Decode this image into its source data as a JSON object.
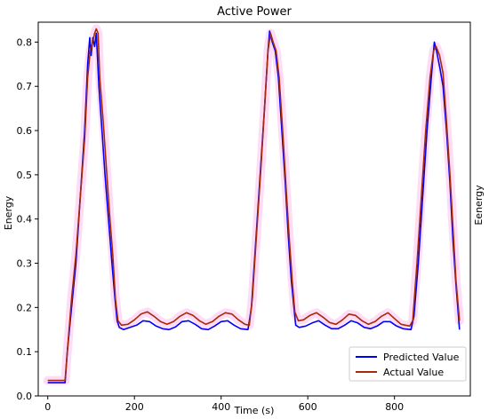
{
  "chart_data": {
    "type": "line",
    "title": "Active Power",
    "xlabel": "Time (s)",
    "ylabel": "Energy",
    "ylabel_right": "Eenergy",
    "xlim": [
      -22,
      975
    ],
    "ylim": [
      0.0,
      0.845
    ],
    "xticks": [
      0,
      200,
      400,
      600,
      800
    ],
    "yticks": [
      0.0,
      0.1,
      0.2,
      0.3,
      0.4,
      0.5,
      0.6,
      0.7,
      0.8
    ],
    "grid": false,
    "legend_position": "lower-right",
    "series": [
      {
        "name": "Predicted Value",
        "color": "#0000ff",
        "points": [
          [
            0,
            0.03
          ],
          [
            40,
            0.03
          ],
          [
            45,
            0.1
          ],
          [
            55,
            0.2
          ],
          [
            65,
            0.3
          ],
          [
            75,
            0.45
          ],
          [
            85,
            0.6
          ],
          [
            92,
            0.75
          ],
          [
            97,
            0.81
          ],
          [
            100,
            0.77
          ],
          [
            104,
            0.81
          ],
          [
            108,
            0.79
          ],
          [
            112,
            0.82
          ],
          [
            118,
            0.7
          ],
          [
            125,
            0.6
          ],
          [
            132,
            0.5
          ],
          [
            140,
            0.4
          ],
          [
            148,
            0.3
          ],
          [
            155,
            0.22
          ],
          [
            160,
            0.17
          ],
          [
            165,
            0.155
          ],
          [
            175,
            0.15
          ],
          [
            190,
            0.155
          ],
          [
            205,
            0.16
          ],
          [
            220,
            0.17
          ],
          [
            235,
            0.168
          ],
          [
            250,
            0.158
          ],
          [
            265,
            0.152
          ],
          [
            280,
            0.15
          ],
          [
            295,
            0.156
          ],
          [
            310,
            0.168
          ],
          [
            325,
            0.17
          ],
          [
            340,
            0.162
          ],
          [
            355,
            0.152
          ],
          [
            370,
            0.15
          ],
          [
            385,
            0.158
          ],
          [
            400,
            0.168
          ],
          [
            415,
            0.17
          ],
          [
            430,
            0.16
          ],
          [
            445,
            0.152
          ],
          [
            462,
            0.15
          ],
          [
            470,
            0.2
          ],
          [
            480,
            0.35
          ],
          [
            490,
            0.5
          ],
          [
            500,
            0.65
          ],
          [
            508,
            0.78
          ],
          [
            512,
            0.825
          ],
          [
            518,
            0.8
          ],
          [
            525,
            0.78
          ],
          [
            532,
            0.72
          ],
          [
            540,
            0.6
          ],
          [
            548,
            0.48
          ],
          [
            555,
            0.36
          ],
          [
            562,
            0.26
          ],
          [
            568,
            0.2
          ],
          [
            572,
            0.16
          ],
          [
            580,
            0.155
          ],
          [
            595,
            0.158
          ],
          [
            610,
            0.165
          ],
          [
            625,
            0.17
          ],
          [
            640,
            0.16
          ],
          [
            655,
            0.152
          ],
          [
            670,
            0.152
          ],
          [
            685,
            0.16
          ],
          [
            700,
            0.17
          ],
          [
            715,
            0.165
          ],
          [
            730,
            0.155
          ],
          [
            745,
            0.152
          ],
          [
            760,
            0.158
          ],
          [
            775,
            0.168
          ],
          [
            790,
            0.168
          ],
          [
            805,
            0.158
          ],
          [
            820,
            0.152
          ],
          [
            838,
            0.15
          ],
          [
            845,
            0.18
          ],
          [
            855,
            0.3
          ],
          [
            865,
            0.45
          ],
          [
            875,
            0.6
          ],
          [
            885,
            0.72
          ],
          [
            892,
            0.8
          ],
          [
            897,
            0.78
          ],
          [
            905,
            0.74
          ],
          [
            912,
            0.7
          ],
          [
            920,
            0.6
          ],
          [
            928,
            0.48
          ],
          [
            935,
            0.35
          ],
          [
            942,
            0.25
          ],
          [
            950,
            0.15
          ]
        ]
      },
      {
        "name": "Actual Value",
        "color": "#a52a0a",
        "points": [
          [
            0,
            0.035
          ],
          [
            40,
            0.035
          ],
          [
            45,
            0.1
          ],
          [
            55,
            0.22
          ],
          [
            65,
            0.32
          ],
          [
            75,
            0.45
          ],
          [
            85,
            0.58
          ],
          [
            92,
            0.72
          ],
          [
            98,
            0.78
          ],
          [
            104,
            0.8
          ],
          [
            108,
            0.82
          ],
          [
            112,
            0.83
          ],
          [
            116,
            0.82
          ],
          [
            120,
            0.72
          ],
          [
            128,
            0.62
          ],
          [
            135,
            0.52
          ],
          [
            142,
            0.42
          ],
          [
            150,
            0.32
          ],
          [
            156,
            0.22
          ],
          [
            162,
            0.17
          ],
          [
            170,
            0.16
          ],
          [
            185,
            0.162
          ],
          [
            200,
            0.172
          ],
          [
            215,
            0.185
          ],
          [
            230,
            0.19
          ],
          [
            245,
            0.18
          ],
          [
            260,
            0.168
          ],
          [
            275,
            0.162
          ],
          [
            290,
            0.168
          ],
          [
            305,
            0.18
          ],
          [
            320,
            0.188
          ],
          [
            335,
            0.182
          ],
          [
            350,
            0.17
          ],
          [
            365,
            0.162
          ],
          [
            380,
            0.168
          ],
          [
            395,
            0.18
          ],
          [
            410,
            0.188
          ],
          [
            425,
            0.185
          ],
          [
            440,
            0.172
          ],
          [
            455,
            0.162
          ],
          [
            465,
            0.16
          ],
          [
            472,
            0.22
          ],
          [
            482,
            0.37
          ],
          [
            492,
            0.52
          ],
          [
            502,
            0.68
          ],
          [
            508,
            0.78
          ],
          [
            514,
            0.82
          ],
          [
            520,
            0.8
          ],
          [
            527,
            0.78
          ],
          [
            534,
            0.72
          ],
          [
            542,
            0.6
          ],
          [
            550,
            0.47
          ],
          [
            557,
            0.36
          ],
          [
            564,
            0.26
          ],
          [
            570,
            0.19
          ],
          [
            578,
            0.17
          ],
          [
            590,
            0.172
          ],
          [
            605,
            0.182
          ],
          [
            620,
            0.188
          ],
          [
            635,
            0.178
          ],
          [
            650,
            0.166
          ],
          [
            665,
            0.162
          ],
          [
            680,
            0.172
          ],
          [
            695,
            0.185
          ],
          [
            710,
            0.182
          ],
          [
            725,
            0.17
          ],
          [
            740,
            0.162
          ],
          [
            755,
            0.168
          ],
          [
            770,
            0.18
          ],
          [
            785,
            0.188
          ],
          [
            800,
            0.175
          ],
          [
            815,
            0.162
          ],
          [
            835,
            0.158
          ],
          [
            842,
            0.17
          ],
          [
            852,
            0.3
          ],
          [
            862,
            0.45
          ],
          [
            872,
            0.6
          ],
          [
            882,
            0.72
          ],
          [
            890,
            0.78
          ],
          [
            896,
            0.79
          ],
          [
            904,
            0.77
          ],
          [
            912,
            0.73
          ],
          [
            920,
            0.62
          ],
          [
            928,
            0.5
          ],
          [
            935,
            0.38
          ],
          [
            942,
            0.26
          ],
          [
            950,
            0.17
          ]
        ]
      }
    ]
  }
}
